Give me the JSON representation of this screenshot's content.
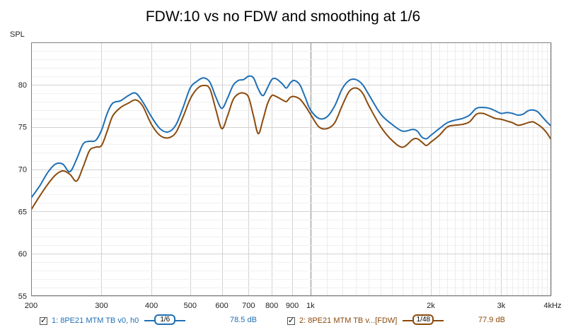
{
  "chart_data": {
    "type": "line",
    "title": "FDW:10 vs no FDW and smoothing at 1/6",
    "ylabel": "SPL",
    "xlabel": "",
    "xscale": "log",
    "xlim": [
      200,
      4000
    ],
    "ylim": [
      55,
      85
    ],
    "grid": true,
    "legend": "bottom",
    "x_ticks": [
      {
        "v": 200,
        "label": "200"
      },
      {
        "v": 300,
        "label": "300"
      },
      {
        "v": 400,
        "label": "400"
      },
      {
        "v": 500,
        "label": "500"
      },
      {
        "v": 600,
        "label": "600"
      },
      {
        "v": 700,
        "label": "700"
      },
      {
        "v": 800,
        "label": "800"
      },
      {
        "v": 900,
        "label": "900"
      },
      {
        "v": 1000,
        "label": "1k"
      },
      {
        "v": 2000,
        "label": "2k"
      },
      {
        "v": 3000,
        "label": "3k"
      },
      {
        "v": 4000,
        "label": "4kHz"
      }
    ],
    "y_ticks": [
      {
        "v": 55,
        "label": "55"
      },
      {
        "v": 60,
        "label": "60"
      },
      {
        "v": 65,
        "label": "65"
      },
      {
        "v": 70,
        "label": "70"
      },
      {
        "v": 75,
        "label": "75"
      },
      {
        "v": 80,
        "label": "80"
      }
    ],
    "series": [
      {
        "name": "1: 8PE21 MTM TB v0, h0",
        "color": "#1f6fb4",
        "smoothing": "1/6",
        "value_label": "78.5 dB",
        "points": [
          [
            200,
            66.6
          ],
          [
            210,
            68.0
          ],
          [
            220,
            69.6
          ],
          [
            230,
            70.6
          ],
          [
            240,
            70.6
          ],
          [
            250,
            69.7
          ],
          [
            260,
            71.2
          ],
          [
            270,
            73.0
          ],
          [
            280,
            73.3
          ],
          [
            290,
            73.4
          ],
          [
            300,
            74.6
          ],
          [
            310,
            76.6
          ],
          [
            320,
            77.8
          ],
          [
            335,
            78.1
          ],
          [
            350,
            78.7
          ],
          [
            365,
            79.0
          ],
          [
            380,
            78.0
          ],
          [
            400,
            76.2
          ],
          [
            420,
            74.8
          ],
          [
            440,
            74.4
          ],
          [
            460,
            75.2
          ],
          [
            480,
            77.3
          ],
          [
            500,
            79.6
          ],
          [
            520,
            80.4
          ],
          [
            540,
            80.8
          ],
          [
            560,
            80.3
          ],
          [
            580,
            78.5
          ],
          [
            600,
            77.2
          ],
          [
            620,
            78.4
          ],
          [
            640,
            79.9
          ],
          [
            660,
            80.5
          ],
          [
            680,
            80.6
          ],
          [
            700,
            81.0
          ],
          [
            720,
            80.8
          ],
          [
            740,
            79.5
          ],
          [
            760,
            78.7
          ],
          [
            780,
            79.6
          ],
          [
            800,
            80.6
          ],
          [
            820,
            80.7
          ],
          [
            850,
            80.1
          ],
          [
            870,
            79.6
          ],
          [
            890,
            80.2
          ],
          [
            910,
            80.5
          ],
          [
            940,
            80.0
          ],
          [
            970,
            78.5
          ],
          [
            1000,
            77.0
          ],
          [
            1050,
            76.0
          ],
          [
            1100,
            76.2
          ],
          [
            1150,
            77.5
          ],
          [
            1200,
            79.5
          ],
          [
            1250,
            80.5
          ],
          [
            1300,
            80.6
          ],
          [
            1350,
            80.0
          ],
          [
            1400,
            78.8
          ],
          [
            1500,
            76.5
          ],
          [
            1600,
            75.3
          ],
          [
            1700,
            74.5
          ],
          [
            1800,
            74.7
          ],
          [
            1850,
            74.5
          ],
          [
            1900,
            73.8
          ],
          [
            1950,
            73.6
          ],
          [
            2000,
            74.0
          ],
          [
            2100,
            74.8
          ],
          [
            2200,
            75.5
          ],
          [
            2300,
            75.8
          ],
          [
            2400,
            76.0
          ],
          [
            2500,
            76.4
          ],
          [
            2600,
            77.2
          ],
          [
            2700,
            77.3
          ],
          [
            2800,
            77.2
          ],
          [
            2900,
            76.9
          ],
          [
            3000,
            76.6
          ],
          [
            3100,
            76.7
          ],
          [
            3200,
            76.6
          ],
          [
            3300,
            76.4
          ],
          [
            3400,
            76.5
          ],
          [
            3500,
            76.9
          ],
          [
            3600,
            77.0
          ],
          [
            3700,
            76.8
          ],
          [
            3800,
            76.2
          ],
          [
            3900,
            75.6
          ],
          [
            4000,
            75.1
          ]
        ]
      },
      {
        "name": "2: 8PE21 MTM TB v...[FDW]",
        "color": "#8b4a0c",
        "smoothing": "1/48",
        "value_label": "77.9 dB",
        "points": [
          [
            200,
            65.2
          ],
          [
            210,
            66.8
          ],
          [
            220,
            68.2
          ],
          [
            230,
            69.3
          ],
          [
            240,
            69.8
          ],
          [
            250,
            69.4
          ],
          [
            260,
            68.6
          ],
          [
            270,
            70.3
          ],
          [
            280,
            72.2
          ],
          [
            290,
            72.6
          ],
          [
            300,
            72.8
          ],
          [
            310,
            74.5
          ],
          [
            320,
            76.3
          ],
          [
            335,
            77.3
          ],
          [
            350,
            77.8
          ],
          [
            365,
            78.2
          ],
          [
            380,
            77.5
          ],
          [
            400,
            75.3
          ],
          [
            420,
            74.0
          ],
          [
            440,
            73.7
          ],
          [
            460,
            74.3
          ],
          [
            480,
            76.2
          ],
          [
            500,
            78.3
          ],
          [
            520,
            79.5
          ],
          [
            540,
            79.9
          ],
          [
            560,
            79.5
          ],
          [
            580,
            77.0
          ],
          [
            600,
            74.8
          ],
          [
            620,
            76.3
          ],
          [
            640,
            78.2
          ],
          [
            660,
            78.9
          ],
          [
            680,
            79.0
          ],
          [
            700,
            78.5
          ],
          [
            720,
            76.3
          ],
          [
            740,
            74.2
          ],
          [
            760,
            75.8
          ],
          [
            780,
            77.7
          ],
          [
            800,
            78.7
          ],
          [
            820,
            78.6
          ],
          [
            850,
            78.2
          ],
          [
            870,
            78.0
          ],
          [
            890,
            78.5
          ],
          [
            910,
            78.6
          ],
          [
            940,
            78.3
          ],
          [
            970,
            77.5
          ],
          [
            1000,
            76.5
          ],
          [
            1050,
            75.0
          ],
          [
            1100,
            74.8
          ],
          [
            1150,
            75.5
          ],
          [
            1200,
            77.5
          ],
          [
            1250,
            79.2
          ],
          [
            1300,
            79.6
          ],
          [
            1350,
            79.0
          ],
          [
            1400,
            77.5
          ],
          [
            1500,
            75.0
          ],
          [
            1600,
            73.4
          ],
          [
            1700,
            72.6
          ],
          [
            1800,
            73.5
          ],
          [
            1850,
            73.6
          ],
          [
            1900,
            73.2
          ],
          [
            1950,
            72.8
          ],
          [
            2000,
            73.2
          ],
          [
            2100,
            74.0
          ],
          [
            2200,
            75.0
          ],
          [
            2300,
            75.2
          ],
          [
            2400,
            75.3
          ],
          [
            2500,
            75.6
          ],
          [
            2600,
            76.5
          ],
          [
            2700,
            76.6
          ],
          [
            2800,
            76.3
          ],
          [
            2900,
            76.0
          ],
          [
            3000,
            75.9
          ],
          [
            3100,
            75.7
          ],
          [
            3200,
            75.5
          ],
          [
            3300,
            75.2
          ],
          [
            3400,
            75.3
          ],
          [
            3500,
            75.5
          ],
          [
            3600,
            75.6
          ],
          [
            3700,
            75.3
          ],
          [
            3800,
            74.9
          ],
          [
            3900,
            74.3
          ],
          [
            4000,
            73.5
          ]
        ]
      }
    ]
  }
}
